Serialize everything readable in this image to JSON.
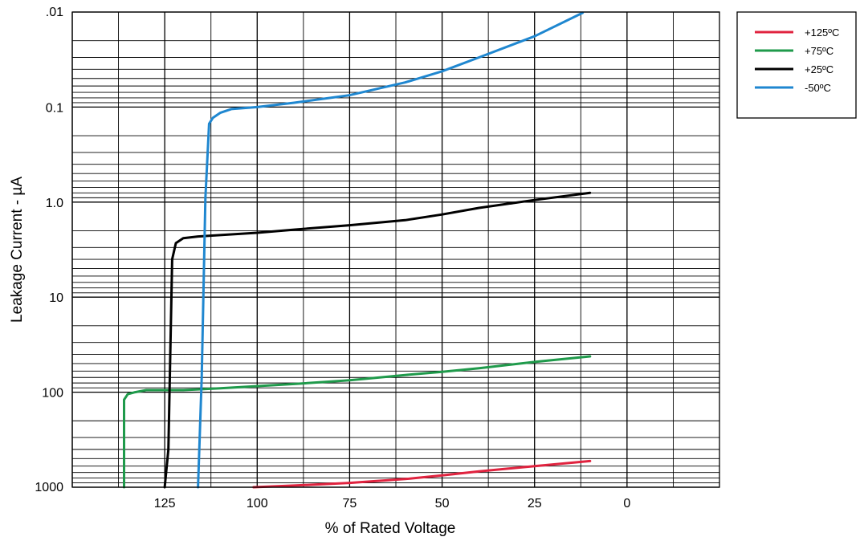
{
  "chart_data": {
    "type": "line",
    "xlabel": "% of Rated Voltage",
    "ylabel": "Leakage Current - µA",
    "xlim": [
      150,
      -25
    ],
    "x_reversed": true,
    "x_ticks": [
      125,
      100,
      75,
      50,
      25,
      0
    ],
    "x_tick_labels": [
      "125",
      "100",
      "75",
      "50",
      "25",
      "0"
    ],
    "y_scale": "log",
    "y_reversed": true,
    "ylim": [
      0.01,
      1000
    ],
    "y_ticks": [
      0.01,
      0.1,
      1,
      10,
      100,
      1000
    ],
    "y_tick_labels": [
      ".01",
      "0.1",
      "1.0",
      "10",
      "100",
      "1000"
    ],
    "grid": true,
    "legend_position": "top-right (outside plot)",
    "series": [
      {
        "name": "+125ºC",
        "color": "#e0233f",
        "points": [
          [
            101,
            1000
          ],
          [
            90,
            960
          ],
          [
            75,
            900
          ],
          [
            60,
            820
          ],
          [
            50,
            750
          ],
          [
            40,
            680
          ],
          [
            25,
            600
          ],
          [
            10,
            530
          ]
        ]
      },
      {
        "name": "+75ºC",
        "color": "#1f9a4b",
        "points": [
          [
            136,
            1000
          ],
          [
            136,
            120
          ],
          [
            135,
            105
          ],
          [
            133,
            100
          ],
          [
            130,
            95
          ],
          [
            120,
            95
          ],
          [
            110,
            91
          ],
          [
            90,
            82
          ],
          [
            75,
            75
          ],
          [
            60,
            66
          ],
          [
            50,
            61
          ],
          [
            40,
            56
          ],
          [
            25,
            48
          ],
          [
            10,
            42
          ]
        ]
      },
      {
        "name": "+25ºC",
        "color": "#000000",
        "points": [
          [
            125,
            1000
          ],
          [
            124,
            400
          ],
          [
            123,
            4.0
          ],
          [
            122,
            2.7
          ],
          [
            120,
            2.4
          ],
          [
            116,
            2.3
          ],
          [
            100,
            2.1
          ],
          [
            90,
            1.95
          ],
          [
            75,
            1.75
          ],
          [
            60,
            1.55
          ],
          [
            50,
            1.35
          ],
          [
            40,
            1.15
          ],
          [
            25,
            0.95
          ],
          [
            10,
            0.8
          ]
        ]
      },
      {
        "name": "-50ºC",
        "color": "#1f87d0",
        "points": [
          [
            116,
            1000
          ],
          [
            115,
            70
          ],
          [
            114,
            0.9
          ],
          [
            113,
            0.15
          ],
          [
            112,
            0.13
          ],
          [
            110,
            0.115
          ],
          [
            107,
            0.105
          ],
          [
            100,
            0.1
          ],
          [
            90,
            0.09
          ],
          [
            75,
            0.075
          ],
          [
            60,
            0.055
          ],
          [
            50,
            0.042
          ],
          [
            40,
            0.03
          ],
          [
            25,
            0.018
          ],
          [
            12,
            0.0102
          ]
        ]
      }
    ]
  }
}
